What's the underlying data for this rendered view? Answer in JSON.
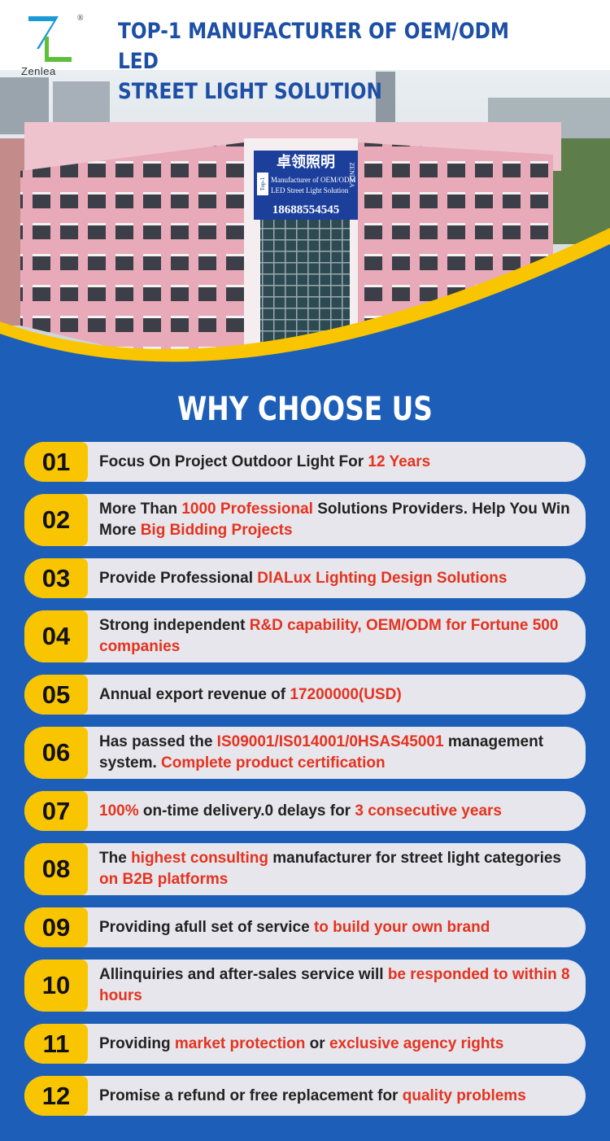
{
  "logo": "Zenlea",
  "title": "TOP-1 MANUFACTURER OF OEM/ODM LED\nSTREET LIGHT SOLUTION",
  "sign": {
    "chinese": "卓领照明",
    "brand": "ZENLEA",
    "tag": "Top-1",
    "line1": "Manufacturer of OEM/ODM",
    "line2": "LED Street Light Solution",
    "phone": "18688554545"
  },
  "heading": "WHY CHOOSE US",
  "items": [
    {
      "number": "01",
      "parts": [
        {
          "text": "Focus On Project Outdoor Light For "
        },
        {
          "text": "12 Years",
          "red": true
        }
      ]
    },
    {
      "number": "02",
      "parts": [
        {
          "text": "More Than "
        },
        {
          "text": "1000 Professional",
          "red": true
        },
        {
          "text": " Solutions Providers. Help You Win More "
        },
        {
          "text": "Big Bidding Projects",
          "red": true
        }
      ]
    },
    {
      "number": "03",
      "parts": [
        {
          "text": "Provide Professional "
        },
        {
          "text": "DlALux Lighting Design Solutions",
          "red": true
        }
      ]
    },
    {
      "number": "04",
      "parts": [
        {
          "text": "Strong independent "
        },
        {
          "text": "R&D capability, OEM/ODM for Fortune 500 companies",
          "red": true
        }
      ]
    },
    {
      "number": "05",
      "parts": [
        {
          "text": "Annual export revenue of "
        },
        {
          "text": "17200000(USD)",
          "red": true
        }
      ]
    },
    {
      "number": "06",
      "parts": [
        {
          "text": "Has passed the "
        },
        {
          "text": "IS09001/IS014001/0HSAS45001",
          "red": true
        },
        {
          "text": " management system. "
        },
        {
          "text": "Complete product certification",
          "red": true
        }
      ]
    },
    {
      "number": "07",
      "parts": [
        {
          "text": "100%",
          "red": true
        },
        {
          "text": " on-time delivery.0 delays for "
        },
        {
          "text": "3 consecutive years",
          "red": true
        }
      ]
    },
    {
      "number": "08",
      "parts": [
        {
          "text": "The "
        },
        {
          "text": "highest consulting",
          "red": true
        },
        {
          "text": " manufacturer for street light categories "
        },
        {
          "text": "on B2B platforms",
          "red": true
        }
      ]
    },
    {
      "number": "09",
      "parts": [
        {
          "text": "Providing afull set of service "
        },
        {
          "text": "to build your own brand",
          "red": true
        }
      ]
    },
    {
      "number": "10",
      "parts": [
        {
          "text": "Allinquiries and after-sales service will "
        },
        {
          "text": "be responded to within 8 hours",
          "red": true
        }
      ]
    },
    {
      "number": "11",
      "parts": [
        {
          "text": "Providing "
        },
        {
          "text": "market protection",
          "red": true
        },
        {
          "text": " or "
        },
        {
          "text": "exclusive agency rights",
          "red": true
        }
      ]
    },
    {
      "number": "12",
      "parts": [
        {
          "text": "Promise a refund or free replacement for "
        },
        {
          "text": "quality problems",
          "red": true
        }
      ]
    }
  ]
}
